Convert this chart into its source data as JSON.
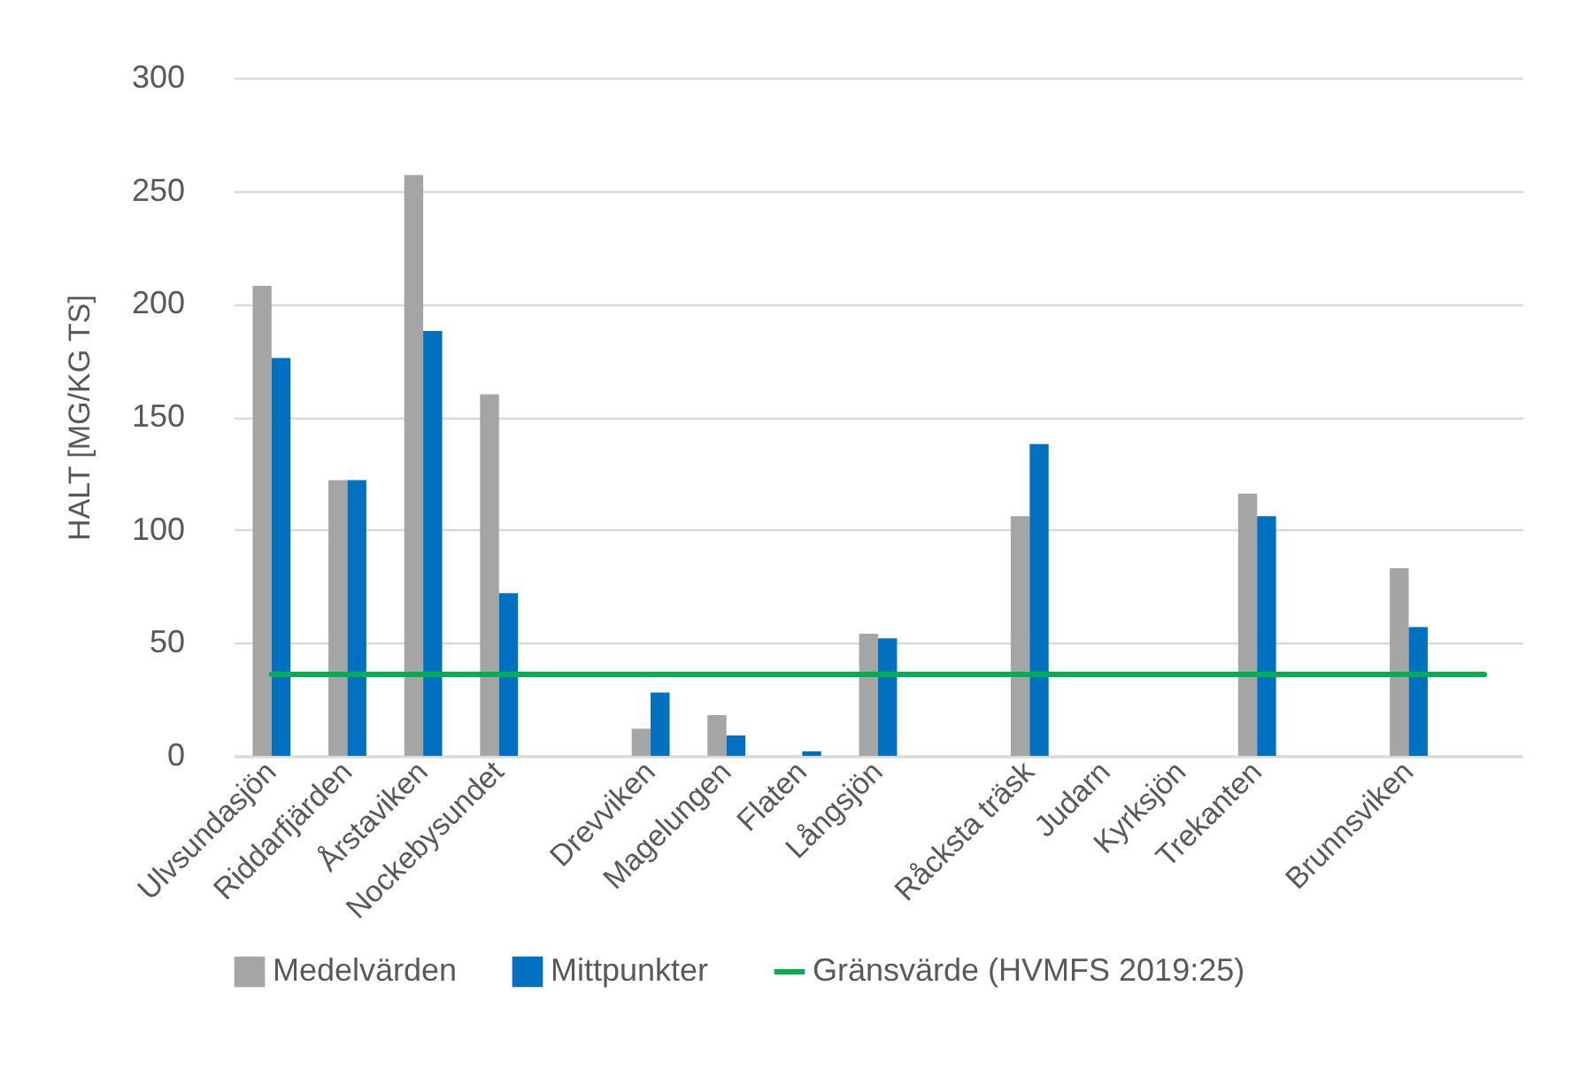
{
  "chart_data": {
    "type": "bar",
    "ylabel": "HALT [MG/KG TS]",
    "categories": [
      "Ulvsundasjön",
      "Riddarfjärden",
      "Årstaviken",
      "Nockebysundet",
      null,
      "Drevviken",
      "Magelungen",
      "Flaten",
      "Långsjön",
      null,
      "Råcksta träsk",
      "Judarn",
      "Kyrksjön",
      "Trekanten",
      null,
      "Brunnsviken",
      null
    ],
    "series": [
      {
        "name": "Medelvärden",
        "color": "#a5a5a5",
        "values": [
          208,
          122,
          257,
          160,
          null,
          12,
          18,
          null,
          54,
          null,
          106,
          null,
          null,
          116,
          null,
          83,
          null
        ]
      },
      {
        "name": "Mittpunkter",
        "color": "#0070c0",
        "values": [
          176,
          122,
          188,
          72,
          null,
          28,
          9,
          2,
          52,
          null,
          138,
          null,
          null,
          106,
          null,
          57,
          null
        ]
      },
      {
        "name": "Gränsvärde (HVMFS 2019:25)",
        "type": "line",
        "color": "#00b050",
        "values": [
          36,
          36,
          36,
          36,
          36,
          36,
          36,
          36,
          36,
          36,
          36,
          36,
          36,
          36,
          36,
          36,
          36
        ]
      }
    ],
    "ylim": [
      0,
      300
    ],
    "yticks": [
      0,
      50,
      100,
      150,
      200,
      250,
      300
    ],
    "grid": "y",
    "legend": "bottom"
  }
}
